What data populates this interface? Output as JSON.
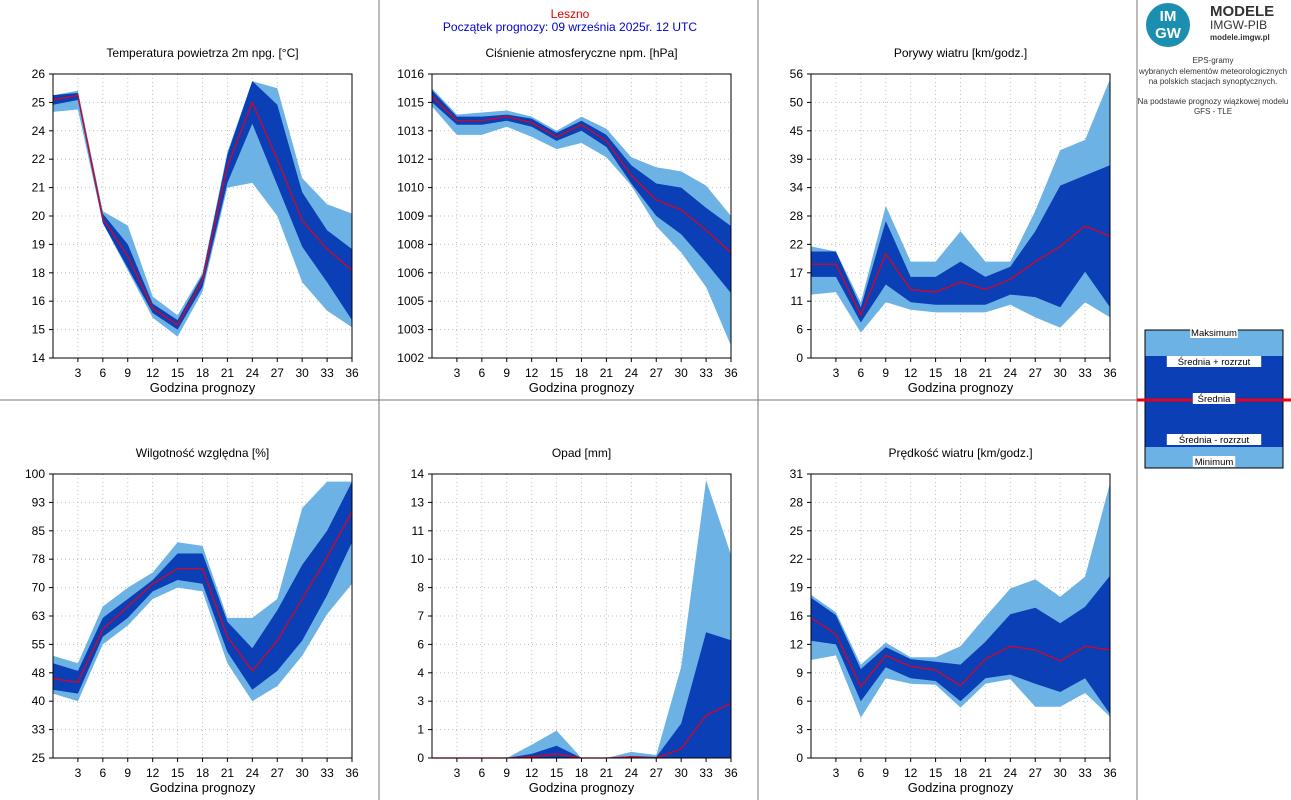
{
  "header": {
    "station": "Leszno",
    "start_label": "Początek prognozy: 09 września 2025r. 12 UTC"
  },
  "logo": {
    "badge": "IM GW",
    "brand_line1": "MODELE",
    "brand_line2": "IMGW-PIB",
    "url": "modele.imgw.pl",
    "badge_color": "#1b8fb0"
  },
  "info": {
    "line1": "EPS-gramy",
    "line2": "wybranych elementów meteorologicznych",
    "line3": "na polskich stacjach  synoptycznych.",
    "line4": "Na podstawie prognozy wiązkowej modelu",
    "line5": "GFS - TLE"
  },
  "legend": {
    "max": "Maksimum",
    "mean_plus": "Średnia + rozrzut",
    "mean": "Średnia",
    "mean_minus": "Średnia - rozrzut",
    "min": "Minimum"
  },
  "colors": {
    "outer_band": "#6cb2e5",
    "inner_band": "#0a3fb5",
    "mean_line": "#e8001a",
    "station_text": "#e00000",
    "start_text": "#0000cc",
    "grid": "#c0c0c0"
  },
  "chart_data": [
    {
      "id": "temperature",
      "type": "area",
      "title": "Temperatura powietrza 2m npg. [°C]",
      "xlabel": "Godzina prognozy",
      "x": [
        0,
        3,
        6,
        9,
        12,
        15,
        18,
        21,
        24,
        27,
        30,
        33,
        36
      ],
      "xticks": [
        3,
        6,
        9,
        12,
        15,
        18,
        21,
        24,
        27,
        30,
        33,
        36
      ],
      "ylim": [
        14,
        26
      ],
      "yticks": [
        "14",
        "15",
        "16",
        "18",
        "19",
        "20",
        "21",
        "22",
        "24",
        "25",
        "26"
      ],
      "series": [
        {
          "name": "Maksimum",
          "values": [
            25.1,
            25.3,
            20.2,
            19.6,
            16.6,
            15.8,
            17.6,
            22.7,
            25.7,
            25.4,
            21.6,
            20.5,
            20.1
          ]
        },
        {
          "name": "Średnia + rozrzut",
          "values": [
            25.1,
            25.2,
            20.1,
            18.8,
            16.3,
            15.6,
            17.5,
            22.6,
            25.7,
            24.7,
            21.0,
            19.4,
            18.6
          ]
        },
        {
          "name": "Średnia",
          "values": [
            24.9,
            25.1,
            19.9,
            18.3,
            16.1,
            15.4,
            17.3,
            22.1,
            24.8,
            22.4,
            19.8,
            18.6,
            17.7
          ]
        },
        {
          "name": "Średnia - rozrzut",
          "values": [
            24.7,
            24.9,
            19.7,
            17.8,
            15.9,
            15.2,
            17.0,
            21.4,
            23.9,
            21.3,
            18.7,
            17.2,
            15.6
          ]
        },
        {
          "name": "Minimum",
          "values": [
            24.4,
            24.5,
            19.7,
            17.7,
            15.7,
            14.9,
            16.8,
            21.2,
            21.4,
            20.0,
            17.2,
            16.0,
            15.3
          ]
        }
      ]
    },
    {
      "id": "pressure",
      "type": "area",
      "title": "Ciśnienie atmosferyczne npm. [hPa]",
      "xlabel": "Godzina prognozy",
      "x": [
        0,
        3,
        6,
        9,
        12,
        15,
        18,
        21,
        24,
        27,
        30,
        33,
        36
      ],
      "xticks": [
        3,
        6,
        9,
        12,
        15,
        18,
        21,
        24,
        27,
        30,
        33,
        36
      ],
      "ylim": [
        1002,
        1016
      ],
      "yticks": [
        "1002",
        "1003",
        "1005",
        "1006",
        "1008",
        "1009",
        "1010",
        "1012",
        "1013",
        "1015",
        "1016"
      ],
      "series": [
        {
          "name": "Maksimum",
          "values": [
            1015.3,
            1014.0,
            1014.1,
            1014.2,
            1013.9,
            1013.2,
            1013.9,
            1013.3,
            1011.9,
            1011.4,
            1011.2,
            1010.5,
            1009.0
          ]
        },
        {
          "name": "Średnia + rozrzut",
          "values": [
            1015.2,
            1013.9,
            1013.9,
            1014.0,
            1013.8,
            1013.1,
            1013.7,
            1013.0,
            1011.5,
            1010.6,
            1010.4,
            1009.4,
            1008.5
          ]
        },
        {
          "name": "Średnia",
          "values": [
            1014.9,
            1013.7,
            1013.7,
            1013.9,
            1013.6,
            1012.9,
            1013.5,
            1012.7,
            1011.0,
            1009.8,
            1009.3,
            1008.3,
            1007.2
          ]
        },
        {
          "name": "Średnia - rozrzut",
          "values": [
            1014.6,
            1013.5,
            1013.5,
            1013.7,
            1013.4,
            1012.7,
            1013.2,
            1012.4,
            1010.6,
            1009.0,
            1008.1,
            1006.7,
            1005.2
          ]
        },
        {
          "name": "Minimum",
          "values": [
            1014.4,
            1013.0,
            1013.0,
            1013.4,
            1012.9,
            1012.3,
            1012.6,
            1011.9,
            1010.5,
            1008.5,
            1007.2,
            1005.5,
            1002.6
          ]
        }
      ]
    },
    {
      "id": "gusts",
      "type": "area",
      "title": "Porywy wiatru [km/godz.]",
      "xlabel": "Godzina prognozy",
      "x": [
        0,
        3,
        6,
        9,
        12,
        15,
        18,
        21,
        24,
        27,
        30,
        33,
        36
      ],
      "xticks": [
        3,
        6,
        9,
        12,
        15,
        18,
        21,
        24,
        27,
        30,
        33,
        36
      ],
      "ylim": [
        0,
        56
      ],
      "yticks": [
        "0",
        "6",
        "11",
        "17",
        "22",
        "28",
        "34",
        "39",
        "45",
        "50",
        "56"
      ],
      "series": [
        {
          "name": "Maksimum",
          "values": [
            22,
            21,
            11,
            30,
            19,
            19,
            25,
            19,
            19,
            29,
            41,
            43,
            55
          ]
        },
        {
          "name": "Średnia + rozrzut",
          "values": [
            21,
            21,
            10,
            27,
            16,
            16,
            19,
            16,
            18,
            25,
            34,
            36,
            38
          ]
        },
        {
          "name": "Średnia",
          "values": [
            18.5,
            18.5,
            8.5,
            20.5,
            13.5,
            13,
            15,
            13.5,
            15.5,
            19,
            22,
            26,
            24
          ]
        },
        {
          "name": "Średnia - rozrzut",
          "values": [
            16,
            16,
            7,
            14.5,
            11,
            10.5,
            10.5,
            10.5,
            12.5,
            12,
            10,
            17,
            10
          ]
        },
        {
          "name": "Minimum",
          "values": [
            12.5,
            13,
            5,
            11,
            9.5,
            9,
            9,
            9,
            10.5,
            8,
            6,
            11,
            8
          ]
        }
      ]
    },
    {
      "id": "humidity",
      "type": "area",
      "title": "Wilgotność względna [%]",
      "xlabel": "Godzina prognozy",
      "x": [
        0,
        3,
        6,
        9,
        12,
        15,
        18,
        21,
        24,
        27,
        30,
        33,
        36
      ],
      "xticks": [
        3,
        6,
        9,
        12,
        15,
        18,
        21,
        24,
        27,
        30,
        33,
        36
      ],
      "ylim": [
        25,
        100
      ],
      "yticks": [
        "25",
        "33",
        "40",
        "48",
        "55",
        "63",
        "70",
        "78",
        "85",
        "93",
        "100"
      ],
      "series": [
        {
          "name": "Maksimum",
          "values": [
            52,
            50,
            65,
            70,
            74,
            82,
            81,
            62,
            62,
            67,
            91,
            98,
            98
          ]
        },
        {
          "name": "Średnia + rozrzut",
          "values": [
            50,
            48,
            62,
            67,
            72,
            79,
            79,
            61,
            54,
            64,
            76,
            85,
            98
          ]
        },
        {
          "name": "Średnia",
          "values": [
            46,
            45,
            59,
            65,
            71,
            75,
            75,
            57,
            48,
            56,
            67,
            78,
            90
          ]
        },
        {
          "name": "Średnia - rozrzut",
          "values": [
            43,
            42,
            57,
            62,
            69,
            72,
            71,
            53,
            43,
            48,
            56,
            68,
            82
          ]
        },
        {
          "name": "Minimum",
          "values": [
            42,
            40,
            55,
            60,
            67,
            70,
            69,
            50,
            40,
            44,
            52,
            63,
            71
          ]
        }
      ]
    },
    {
      "id": "precipitation",
      "type": "area",
      "title": "Opad [mm]",
      "xlabel": "Godzina prognozy",
      "x": [
        0,
        3,
        6,
        9,
        12,
        15,
        18,
        21,
        24,
        27,
        30,
        33,
        36
      ],
      "xticks": [
        3,
        6,
        9,
        12,
        15,
        18,
        21,
        24,
        27,
        30,
        33,
        36
      ],
      "ylim": [
        0,
        14
      ],
      "yticks": [
        "0",
        "1",
        "3",
        "4",
        "6",
        "7",
        "8",
        "10",
        "11",
        "13",
        "14"
      ],
      "series": [
        {
          "name": "Maksimum",
          "values": [
            0,
            0,
            0,
            0,
            0.65,
            1.35,
            0,
            0,
            0.3,
            0.15,
            4.5,
            13.7,
            10
          ]
        },
        {
          "name": "Średnia + rozrzut",
          "values": [
            0,
            0,
            0,
            0,
            0.2,
            0.6,
            0,
            0,
            0.1,
            0.05,
            1.7,
            6.2,
            5.8
          ]
        },
        {
          "name": "Średnia",
          "values": [
            0,
            0,
            0,
            0,
            0.05,
            0.2,
            0,
            0,
            0.05,
            0,
            0.45,
            2.1,
            2.7
          ]
        },
        {
          "name": "Średnia - rozrzut",
          "values": [
            0,
            0,
            0,
            0,
            0,
            0,
            0,
            0,
            0,
            0,
            0,
            0,
            0
          ]
        },
        {
          "name": "Minimum",
          "values": [
            0,
            0,
            0,
            0,
            0,
            0,
            0,
            0,
            0,
            0,
            0,
            0,
            0
          ]
        }
      ]
    },
    {
      "id": "wind-speed",
      "type": "area",
      "title": "Prędkość wiatru [km/godz.]",
      "xlabel": "Godzina prognozy",
      "x": [
        0,
        3,
        6,
        9,
        12,
        15,
        18,
        21,
        24,
        27,
        30,
        33,
        36
      ],
      "xticks": [
        3,
        6,
        9,
        12,
        15,
        18,
        21,
        24,
        27,
        30,
        33,
        36
      ],
      "ylim": [
        0,
        31
      ],
      "yticks": [
        "0",
        "3",
        "6",
        "9",
        "12",
        "16",
        "19",
        "22",
        "25",
        "28",
        "31"
      ],
      "series": [
        {
          "name": "Maksimum",
          "values": [
            17.8,
            15.9,
            10.2,
            12.6,
            11.0,
            11.0,
            12.2,
            15.4,
            18.5,
            19.5,
            17.6,
            19.8,
            30.0
          ]
        },
        {
          "name": "Średnia + rozrzut",
          "values": [
            17.5,
            15.6,
            9.7,
            12.1,
            10.8,
            10.5,
            10.2,
            12.7,
            15.7,
            16.4,
            14.7,
            16.5,
            19.9
          ]
        },
        {
          "name": "Średnia",
          "values": [
            15.3,
            13.5,
            7.8,
            11.2,
            10.0,
            9.6,
            7.9,
            10.8,
            12.2,
            11.8,
            10.6,
            12.2,
            11.8
          ]
        },
        {
          "name": "Średnia - rozrzut",
          "values": [
            12.8,
            12.4,
            6.2,
            9.9,
            8.7,
            8.4,
            6.2,
            8.7,
            9.1,
            8.1,
            7.2,
            8.7,
            4.8
          ]
        },
        {
          "name": "Minimum",
          "values": [
            10.7,
            11.2,
            4.4,
            8.7,
            8.1,
            8.0,
            5.5,
            8.1,
            8.6,
            5.6,
            5.6,
            7.1,
            4.5
          ]
        }
      ]
    }
  ]
}
